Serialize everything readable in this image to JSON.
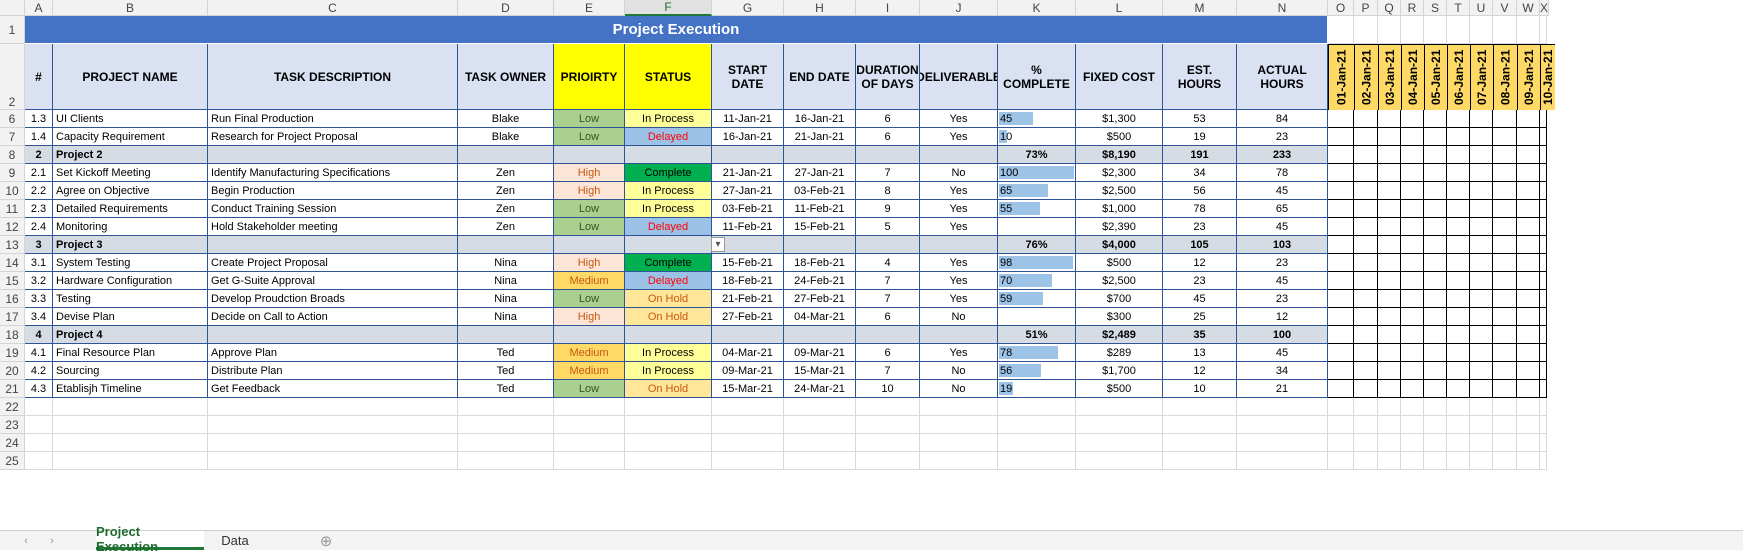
{
  "columns": [
    "A",
    "B",
    "C",
    "D",
    "E",
    "F",
    "G",
    "H",
    "I",
    "J",
    "K",
    "L",
    "M",
    "N",
    "O",
    "P",
    "Q",
    "R",
    "S",
    "T",
    "U",
    "V",
    "W",
    "X"
  ],
  "selected_column": "F",
  "sheet": {
    "title": "Project Execution",
    "headers": {
      "num": "#",
      "project_name": "PROJECT NAME",
      "task_description": "TASK DESCRIPTION",
      "task_owner": "TASK OWNER",
      "priority": "PRIOIRTY",
      "status": "STATUS",
      "start_date": "START DATE",
      "end_date": "END DATE",
      "duration": "DURATION OF DAYS",
      "deliverable": "DELIVERABLE",
      "pct_complete": "% COMPLETE",
      "fixed_cost": "FIXED COST",
      "est_hours": "EST. HOURS",
      "actual_hours": "ACTUAL HOURS"
    },
    "calendar_dates": [
      "01-Jan-21",
      "02-Jan-21",
      "03-Jan-21",
      "04-Jan-21",
      "05-Jan-21",
      "06-Jan-21",
      "07-Jan-21",
      "08-Jan-21",
      "09-Jan-21",
      "10-Jan-21"
    ]
  },
  "colors": {
    "title_bg": "#4472c4",
    "header_bg": "#d9e1f2",
    "header_yellow": "#ffff00",
    "calendar_bg": "#ffd966",
    "group_bg": "#d6dce4",
    "priority_low": "#a9d08e",
    "priority_high": "#fce4d6",
    "priority_medium": "#ffd966",
    "status_in_process": "#ffff99",
    "status_delayed": "#9bc2e6",
    "status_complete": "#00b050",
    "status_on_hold": "#ffe699",
    "red_text": "#ff0000",
    "orange_text": "#c65911",
    "progress_bar": "#9dc3e6"
  },
  "rows": [
    {
      "row": "6",
      "type": "task",
      "num": "1.3",
      "name": "UI Clients",
      "desc": "Run Final Production",
      "owner": "Blake",
      "priority": "Low",
      "status": "In Process",
      "start": "11-Jan-21",
      "end": "16-Jan-21",
      "duration": "6",
      "deliverable": "Yes",
      "pct": "45",
      "cost": "$1,300",
      "est": "53",
      "actual": "84"
    },
    {
      "row": "7",
      "type": "task",
      "num": "1.4",
      "name": "Capacity Requirement",
      "desc": "Research for Project Proposal",
      "owner": "Blake",
      "priority": "Low",
      "status": "Delayed",
      "start": "16-Jan-21",
      "end": "21-Jan-21",
      "duration": "6",
      "deliverable": "Yes",
      "pct": "10",
      "cost": "$500",
      "est": "19",
      "actual": "23"
    },
    {
      "row": "8",
      "type": "group",
      "num": "2",
      "name": "Project 2",
      "pct": "73%",
      "cost": "$8,190",
      "est": "191",
      "actual": "233"
    },
    {
      "row": "9",
      "type": "task",
      "num": "2.1",
      "name": "Set Kickoff Meeting",
      "desc": "Identify Manufacturing Specifications",
      "owner": "Zen",
      "priority": "High",
      "status": "Complete",
      "start": "21-Jan-21",
      "end": "27-Jan-21",
      "duration": "7",
      "deliverable": "No",
      "pct": "100",
      "cost": "$2,300",
      "est": "34",
      "actual": "78"
    },
    {
      "row": "10",
      "type": "task",
      "num": "2.2",
      "name": "Agree on Objective",
      "desc": "Begin Production",
      "owner": "Zen",
      "priority": "High",
      "status": "In Process",
      "start": "27-Jan-21",
      "end": "03-Feb-21",
      "duration": "8",
      "deliverable": "Yes",
      "pct": "65",
      "cost": "$2,500",
      "est": "56",
      "actual": "45"
    },
    {
      "row": "11",
      "type": "task",
      "num": "2.3",
      "name": "Detailed Requirements",
      "desc": "Conduct Training Session",
      "owner": "Zen",
      "priority": "Low",
      "status": "In Process",
      "start": "03-Feb-21",
      "end": "11-Feb-21",
      "duration": "9",
      "deliverable": "Yes",
      "pct": "55",
      "cost": "$1,000",
      "est": "78",
      "actual": "65"
    },
    {
      "row": "12",
      "type": "task",
      "num": "2.4",
      "name": "Monitoring",
      "desc": "Hold Stakeholder meeting",
      "owner": "Zen",
      "priority": "Low",
      "status": "Delayed",
      "start": "11-Feb-21",
      "end": "15-Feb-21",
      "duration": "5",
      "deliverable": "Yes",
      "pct": "",
      "cost": "$2,390",
      "est": "23",
      "actual": "45"
    },
    {
      "row": "13",
      "type": "group",
      "num": "3",
      "name": "Project 3",
      "pct": "76%",
      "cost": "$4,000",
      "est": "105",
      "actual": "103"
    },
    {
      "row": "14",
      "type": "task",
      "num": "3.1",
      "name": "System Testing",
      "desc": "Create Project Proposal",
      "owner": "Nina",
      "priority": "High",
      "status": "Complete",
      "start": "15-Feb-21",
      "end": "18-Feb-21",
      "duration": "4",
      "deliverable": "Yes",
      "pct": "98",
      "cost": "$500",
      "est": "12",
      "actual": "23"
    },
    {
      "row": "15",
      "type": "task",
      "num": "3.2",
      "name": "Hardware Configuration",
      "desc": "Get G-Suite Approval",
      "owner": "Nina",
      "priority": "Medium",
      "status": "Delayed",
      "start": "18-Feb-21",
      "end": "24-Feb-21",
      "duration": "7",
      "deliverable": "Yes",
      "pct": "70",
      "cost": "$2,500",
      "est": "23",
      "actual": "45"
    },
    {
      "row": "16",
      "type": "task",
      "num": "3.3",
      "name": "Testing",
      "desc": "Develop Proudction Broads",
      "owner": "Nina",
      "priority": "Low",
      "status": "On Hold",
      "start": "21-Feb-21",
      "end": "27-Feb-21",
      "duration": "7",
      "deliverable": "Yes",
      "pct": "59",
      "cost": "$700",
      "est": "45",
      "actual": "23"
    },
    {
      "row": "17",
      "type": "task",
      "num": "3.4",
      "name": "Devise Plan",
      "desc": "Decide on Call to Action",
      "owner": "Nina",
      "priority": "High",
      "status": "On Hold",
      "start": "27-Feb-21",
      "end": "04-Mar-21",
      "duration": "6",
      "deliverable": "No",
      "pct": "",
      "cost": "$300",
      "est": "25",
      "actual": "12"
    },
    {
      "row": "18",
      "type": "group",
      "num": "4",
      "name": "Project 4",
      "pct": "51%",
      "cost": "$2,489",
      "est": "35",
      "actual": "100"
    },
    {
      "row": "19",
      "type": "task",
      "num": "4.1",
      "name": "Final Resource Plan",
      "desc": "Approve Plan",
      "owner": "Ted",
      "priority": "Medium",
      "status": "In Process",
      "start": "04-Mar-21",
      "end": "09-Mar-21",
      "duration": "6",
      "deliverable": "Yes",
      "pct": "78",
      "cost": "$289",
      "est": "13",
      "actual": "45"
    },
    {
      "row": "20",
      "type": "task",
      "num": "4.2",
      "name": "Sourcing",
      "desc": "Distribute Plan",
      "owner": "Ted",
      "priority": "Medium",
      "status": "In Process",
      "start": "09-Mar-21",
      "end": "15-Mar-21",
      "duration": "7",
      "deliverable": "No",
      "pct": "56",
      "cost": "$1,700",
      "est": "12",
      "actual": "34"
    },
    {
      "row": "21",
      "type": "task",
      "num": "4.3",
      "name": "Etablisjh Timeline",
      "desc": "Get Feedback",
      "owner": "Ted",
      "priority": "Low",
      "status": "On Hold",
      "start": "15-Mar-21",
      "end": "24-Mar-21",
      "duration": "10",
      "deliverable": "No",
      "pct": "19",
      "cost": "$500",
      "est": "10",
      "actual": "21"
    }
  ],
  "empty_rows": [
    "22",
    "23",
    "24",
    "25"
  ],
  "tabs": [
    {
      "label": "Project Execution",
      "active": true
    },
    {
      "label": "Data",
      "active": false
    }
  ],
  "icons": {
    "add_sheet": "⊕",
    "nav_prev": "‹",
    "nav_next": "›",
    "dropdown": "▾"
  }
}
